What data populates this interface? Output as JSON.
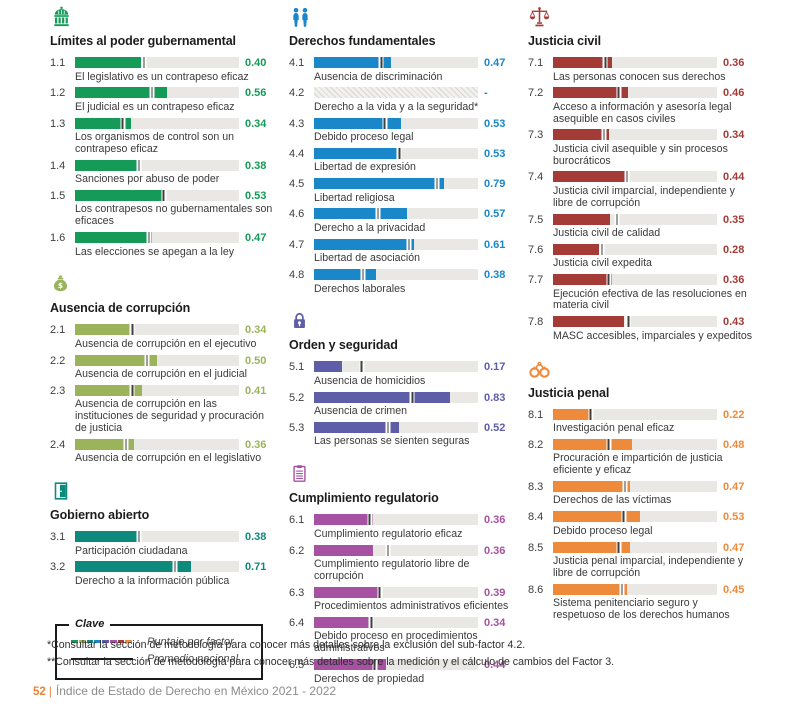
{
  "page": {
    "footnotes": [
      "*Consultar la sección de metodología para conocer más detalles sobre la exclusión del sub-factor 4.2.",
      "**Consultar la sección de metodología para conocer más detalles sobre la medición y el cálculo de cambios del Factor 3."
    ],
    "footer": {
      "page_number": "52",
      "separator": "|",
      "title": "Índice de Estado de Derecho en México 2021 - 2022"
    }
  },
  "legend": {
    "title": "Clave",
    "items": [
      {
        "label": "Puntaje por factor"
      },
      {
        "label": "Promedio nacional"
      }
    ],
    "swatch_colors": [
      "#159a57",
      "#9bb45c",
      "#0e8a7d",
      "#1a87c8",
      "#5d5da8",
      "#a751a2",
      "#a43b36",
      "#ee8a3b"
    ],
    "national_line_color": "#1a1a1a"
  },
  "chart_data": [
    {
      "type": "bar",
      "orientation": "horizontal",
      "column": "left",
      "icon": "capitol-icon",
      "color": "#159a57",
      "title": "Límites al poder gubernamental",
      "xlim": [
        0,
        1
      ],
      "bar_meaning": "Puntaje por factor",
      "marker_meaning": "Promedio nacional",
      "rows": [
        {
          "code": "1.1",
          "label": "El legislativo es un contrapeso eficaz",
          "score": 0.4,
          "display": "0.40",
          "avg": 0.42
        },
        {
          "code": "1.2",
          "label": "El judicial es un contrapeso eficaz",
          "score": 0.56,
          "display": "0.56",
          "avg": 0.47
        },
        {
          "code": "1.3",
          "label": "Los organismos de control son un contrapeso eficaz",
          "score": 0.34,
          "display": "0.34",
          "avg": 0.29
        },
        {
          "code": "1.4",
          "label": "Sanciones por abuso de poder",
          "score": 0.38,
          "display": "0.38",
          "avg": 0.39
        },
        {
          "code": "1.5",
          "label": "Los contrapesos no gubernamentales son eficaces",
          "score": 0.53,
          "display": "0.53",
          "avg": 0.54
        },
        {
          "code": "1.6",
          "label": "Las elecciones se apegan a la ley",
          "score": 0.47,
          "display": "0.47",
          "avg": 0.45
        }
      ]
    },
    {
      "type": "bar",
      "orientation": "horizontal",
      "column": "left",
      "icon": "money-bag-icon",
      "color": "#9bb45c",
      "title": "Ausencia de corrupción",
      "xlim": [
        0,
        1
      ],
      "bar_meaning": "Puntaje por factor",
      "marker_meaning": "Promedio nacional",
      "rows": [
        {
          "code": "2.1",
          "label": "Ausencia de corrupción en el ejecutivo",
          "score": 0.34,
          "display": "0.34",
          "avg": 0.35
        },
        {
          "code": "2.2",
          "label": "Ausencia de corrupción en el judicial",
          "score": 0.5,
          "display": "0.50",
          "avg": 0.44
        },
        {
          "code": "2.3",
          "label": "Ausencia de corrupción en las instituciones de seguridad y procuración de justicia",
          "score": 0.41,
          "display": "0.41",
          "avg": 0.35
        },
        {
          "code": "2.4",
          "label": "Ausencia de corrupción en el legislativo",
          "score": 0.36,
          "display": "0.36",
          "avg": 0.31
        }
      ]
    },
    {
      "type": "bar",
      "orientation": "horizontal",
      "column": "left",
      "icon": "open-door-icon",
      "color": "#0e8a7d",
      "title": "Gobierno abierto",
      "xlim": [
        0,
        1
      ],
      "bar_meaning": "Puntaje por factor",
      "marker_meaning": "Promedio nacional",
      "rows": [
        {
          "code": "3.1",
          "label": "Participación ciudadana",
          "score": 0.38,
          "display": "0.38",
          "avg": 0.39
        },
        {
          "code": "3.2",
          "label": "Derecho a la información pública",
          "score": 0.71,
          "display": "0.71",
          "avg": 0.61
        }
      ]
    },
    {
      "type": "bar",
      "orientation": "horizontal",
      "column": "middle",
      "icon": "people-icon",
      "color": "#1a87c8",
      "title": "Derechos fundamentales",
      "xlim": [
        0,
        1
      ],
      "bar_meaning": "Puntaje por factor",
      "marker_meaning": "Promedio nacional",
      "rows": [
        {
          "code": "4.1",
          "label": "Ausencia de discriminación",
          "score": 0.47,
          "display": "0.47",
          "avg": 0.41
        },
        {
          "code": "4.2",
          "label": "Derecho a la vida y a la seguridad*",
          "score": null,
          "display": "-",
          "avg": null,
          "hatched": true
        },
        {
          "code": "4.3",
          "label": "Debido proceso legal",
          "score": 0.53,
          "display": "0.53",
          "avg": 0.43
        },
        {
          "code": "4.4",
          "label": "Libertad de expresión",
          "score": 0.53,
          "display": "0.53",
          "avg": 0.52
        },
        {
          "code": "4.5",
          "label": "Libertad religiosa",
          "score": 0.79,
          "display": "0.79",
          "avg": 0.75
        },
        {
          "code": "4.6",
          "label": "Derecho a la privacidad",
          "score": 0.57,
          "display": "0.57",
          "avg": 0.39
        },
        {
          "code": "4.7",
          "label": "Libertad de asociación",
          "score": 0.61,
          "display": "0.61",
          "avg": 0.58
        },
        {
          "code": "4.8",
          "label": "Derechos laborales",
          "score": 0.38,
          "display": "0.38",
          "avg": 0.3
        }
      ]
    },
    {
      "type": "bar",
      "orientation": "horizontal",
      "column": "middle",
      "icon": "padlock-icon",
      "color": "#5d5da8",
      "title": "Orden y seguridad",
      "xlim": [
        0,
        1
      ],
      "bar_meaning": "Puntaje por factor",
      "marker_meaning": "Promedio nacional",
      "rows": [
        {
          "code": "5.1",
          "label": "Ausencia de homicidios",
          "score": 0.17,
          "display": "0.17",
          "avg": 0.29
        },
        {
          "code": "5.2",
          "label": "Ausencia de crimen",
          "score": 0.83,
          "display": "0.83",
          "avg": 0.6
        },
        {
          "code": "5.3",
          "label": "Las personas se sienten seguras",
          "score": 0.52,
          "display": "0.52",
          "avg": 0.45
        }
      ]
    },
    {
      "type": "bar",
      "orientation": "horizontal",
      "column": "middle",
      "icon": "clipboard-icon",
      "color": "#a751a2",
      "title": "Cumplimiento regulatorio",
      "xlim": [
        0,
        1
      ],
      "bar_meaning": "Puntaje por factor",
      "marker_meaning": "Promedio nacional",
      "rows": [
        {
          "code": "6.1",
          "label": "Cumplimiento regulatorio eficaz",
          "score": 0.36,
          "display": "0.36",
          "avg": 0.34
        },
        {
          "code": "6.2",
          "label": "Cumplimiento regulatorio libre de corrupción",
          "score": 0.36,
          "display": "0.36",
          "avg": 0.45
        },
        {
          "code": "6.3",
          "label": "Procedimientos administrativos eficientes",
          "score": 0.39,
          "display": "0.39",
          "avg": 0.4
        },
        {
          "code": "6.4",
          "label": "Debido proceso en procedimientos administrativos",
          "score": 0.34,
          "display": "0.34",
          "avg": 0.35
        },
        {
          "code": "6.5",
          "label": "Derechos de propiedad",
          "score": 0.44,
          "display": "0.44",
          "avg": 0.37
        }
      ]
    },
    {
      "type": "bar",
      "orientation": "horizontal",
      "column": "right",
      "icon": "scales-icon",
      "color": "#a43b36",
      "title": "Justicia civil",
      "xlim": [
        0,
        1
      ],
      "bar_meaning": "Puntaje por factor",
      "marker_meaning": "Promedio nacional",
      "rows": [
        {
          "code": "7.1",
          "label": "Las personas conocen sus derechos",
          "score": 0.36,
          "display": "0.36",
          "avg": 0.32
        },
        {
          "code": "7.2",
          "label": "Acceso a información y asesoría legal asequible en casos civiles",
          "score": 0.46,
          "display": "0.46",
          "avg": 0.4
        },
        {
          "code": "7.3",
          "label": "Justicia civil asequible y sin procesos burocráticos",
          "score": 0.34,
          "display": "0.34",
          "avg": 0.31
        },
        {
          "code": "7.4",
          "label": "Justicia civil imparcial, independiente y libre de corrupción",
          "score": 0.44,
          "display": "0.44",
          "avg": 0.45
        },
        {
          "code": "7.5",
          "label": "Justicia civil de calidad",
          "score": 0.35,
          "display": "0.35",
          "avg": 0.39
        },
        {
          "code": "7.6",
          "label": "Justicia civil expedita",
          "score": 0.28,
          "display": "0.28",
          "avg": 0.3
        },
        {
          "code": "7.7",
          "label": "Ejecución efectiva de las resoluciones en materia civil",
          "score": 0.36,
          "display": "0.36",
          "avg": 0.34
        },
        {
          "code": "7.8",
          "label": "MASC accesibles, imparciales y expeditos",
          "score": 0.43,
          "display": "0.43",
          "avg": 0.46
        }
      ]
    },
    {
      "type": "bar",
      "orientation": "horizontal",
      "column": "right",
      "icon": "handcuffs-icon",
      "color": "#ee8a3b",
      "title": "Justicia penal",
      "xlim": [
        0,
        1
      ],
      "bar_meaning": "Puntaje por factor",
      "marker_meaning": "Promedio nacional",
      "rows": [
        {
          "code": "8.1",
          "label": "Investigación penal eficaz",
          "score": 0.22,
          "display": "0.22",
          "avg": 0.23
        },
        {
          "code": "8.2",
          "label": "Procuración e impartición de justicia eficiente y eficaz",
          "score": 0.48,
          "display": "0.48",
          "avg": 0.34
        },
        {
          "code": "8.3",
          "label": "Derechos de las víctimas",
          "score": 0.47,
          "display": "0.47",
          "avg": 0.44
        },
        {
          "code": "8.4",
          "label": "Debido proceso legal",
          "score": 0.53,
          "display": "0.53",
          "avg": 0.43
        },
        {
          "code": "8.5",
          "label": "Justicia penal imparcial, independiente y libre de corrupción",
          "score": 0.47,
          "display": "0.47",
          "avg": 0.4
        },
        {
          "code": "8.6",
          "label": "Sistema penitenciario seguro y respetuoso de los derechos humanos",
          "score": 0.45,
          "display": "0.45",
          "avg": 0.42
        }
      ]
    }
  ]
}
